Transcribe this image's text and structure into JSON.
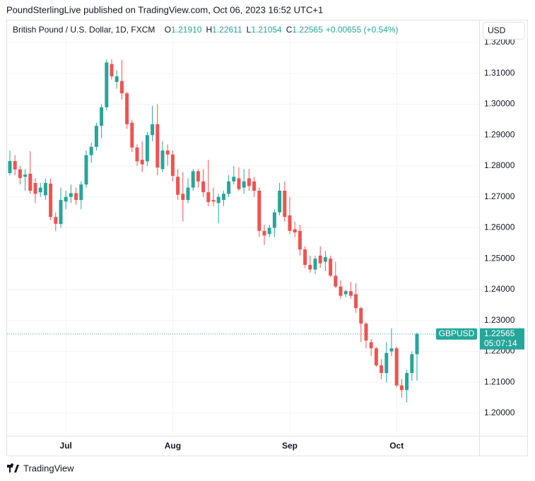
{
  "header": {
    "publisher": "PoundSterlingLive published on TradingView.com, Oct 06, 2023 16:52 UTC+1",
    "symbol": "British Pound / U.S. Dollar, 1D, FXCM",
    "ohlc": [
      {
        "label": "O",
        "value": "1.21910"
      },
      {
        "label": "H",
        "value": "1.22611"
      },
      {
        "label": "L",
        "value": "1.21054"
      },
      {
        "label": "C",
        "value": "1.22565"
      }
    ],
    "change": "+0.00655 (+0.54%)",
    "currency": "USD"
  },
  "footer": {
    "brand": "TradingView"
  },
  "chart_data": {
    "type": "candlestick",
    "up_color": "#26a69a",
    "down_color": "#ef5350",
    "grid": true,
    "categories": [
      null,
      null,
      null,
      null,
      null,
      null,
      null,
      null,
      null,
      null,
      null,
      "Jul",
      null,
      null,
      null,
      null,
      null,
      null,
      null,
      null,
      null,
      null,
      null,
      null,
      null,
      null,
      null,
      null,
      null,
      null,
      null,
      null,
      "Aug",
      null,
      null,
      null,
      null,
      null,
      null,
      null,
      null,
      null,
      null,
      null,
      null,
      null,
      null,
      null,
      null,
      null,
      null,
      null,
      null,
      null,
      null,
      "Sep",
      null,
      null,
      null,
      null,
      null,
      null,
      null,
      null,
      null,
      null,
      null,
      null,
      null,
      null,
      null,
      null,
      null,
      null,
      null,
      null,
      "Oct",
      null,
      null,
      null,
      null
    ],
    "open": [
      1.2777,
      1.2816,
      1.2789,
      1.2765,
      1.2775,
      1.2745,
      1.2715,
      1.2705,
      1.2743,
      1.2635,
      1.2612,
      1.2685,
      1.27,
      1.2712,
      1.269,
      1.274,
      1.2835,
      1.2862,
      1.293,
      1.299,
      1.313,
      1.3072,
      1.3075,
      1.3035,
      1.294,
      1.286,
      1.282,
      1.2815,
      1.29,
      1.2935,
      1.279,
      1.285,
      1.2837,
      1.2765,
      1.271,
      1.269,
      1.273,
      1.2783,
      1.275,
      1.2715,
      1.269,
      1.268,
      1.269,
      1.271,
      1.275,
      1.276,
      1.273,
      1.276,
      1.275,
      1.272,
      1.259,
      1.258,
      1.26,
      1.265,
      1.272,
      1.264,
      1.2595,
      1.259,
      1.253,
      1.248,
      1.2465,
      1.251,
      1.249,
      1.25,
      1.2445,
      1.241,
      1.2385,
      1.2395,
      1.2385,
      1.234,
      1.229,
      1.223,
      1.221,
      1.2155,
      1.213,
      1.22,
      1.221,
      1.209,
      1.2075,
      1.213,
      1.2191
    ],
    "high": [
      1.285,
      1.2835,
      1.28,
      1.279,
      1.2848,
      1.276,
      1.2745,
      1.276,
      1.276,
      1.265,
      1.273,
      1.272,
      1.274,
      1.273,
      1.275,
      1.285,
      1.2875,
      1.294,
      1.3,
      1.3145,
      1.3145,
      1.311,
      1.3143,
      1.304,
      1.295,
      1.287,
      1.288,
      1.291,
      1.2995,
      1.3,
      1.288,
      1.287,
      1.285,
      1.279,
      1.278,
      1.276,
      1.279,
      1.279,
      1.279,
      1.282,
      1.273,
      1.271,
      1.272,
      1.277,
      1.28,
      1.2795,
      1.279,
      1.279,
      1.2765,
      1.273,
      1.261,
      1.261,
      1.266,
      1.2745,
      1.275,
      1.27,
      1.262,
      1.261,
      1.254,
      1.251,
      1.251,
      1.254,
      1.2525,
      1.251,
      1.249,
      1.243,
      1.24,
      1.2425,
      1.242,
      1.2345,
      1.2295,
      1.224,
      1.2215,
      1.2175,
      1.223,
      1.2275,
      1.2215,
      1.211,
      1.214,
      1.22,
      1.22611
    ],
    "low": [
      1.277,
      1.277,
      1.274,
      1.272,
      1.271,
      1.268,
      1.27,
      1.269,
      1.2625,
      1.259,
      1.26,
      1.266,
      1.268,
      1.2675,
      1.266,
      1.273,
      1.281,
      1.285,
      1.289,
      1.298,
      1.308,
      1.305,
      1.3015,
      1.292,
      1.2845,
      1.28,
      1.278,
      1.28,
      1.288,
      1.277,
      1.278,
      1.28,
      1.275,
      1.269,
      1.262,
      1.268,
      1.272,
      1.273,
      1.27,
      1.267,
      1.267,
      1.2615,
      1.267,
      1.27,
      1.274,
      1.272,
      1.271,
      1.272,
      1.27,
      1.257,
      1.2545,
      1.257,
      1.257,
      1.264,
      1.262,
      1.258,
      1.257,
      1.251,
      1.247,
      1.2455,
      1.245,
      1.247,
      1.246,
      1.244,
      1.2405,
      1.237,
      1.2375,
      1.237,
      1.2325,
      1.223,
      1.221,
      1.2185,
      1.215,
      1.211,
      1.21,
      1.2185,
      1.2085,
      1.205,
      1.2035,
      1.2105,
      1.21054
    ],
    "close": [
      1.2816,
      1.2789,
      1.2761,
      1.2772,
      1.272,
      1.271,
      1.273,
      1.2745,
      1.2635,
      1.2613,
      1.269,
      1.27,
      1.2712,
      1.269,
      1.274,
      1.2835,
      1.2862,
      1.293,
      1.299,
      1.3135,
      1.309,
      1.309,
      1.3035,
      1.2935,
      1.286,
      1.2815,
      1.2805,
      1.29,
      1.2935,
      1.2795,
      1.285,
      1.2837,
      1.2768,
      1.2707,
      1.269,
      1.273,
      1.2783,
      1.275,
      1.2715,
      1.2683,
      1.2685,
      1.27,
      1.271,
      1.275,
      1.2765,
      1.2725,
      1.275,
      1.2735,
      1.272,
      1.259,
      1.2575,
      1.26,
      1.265,
      1.272,
      1.2635,
      1.259,
      1.2585,
      1.253,
      1.248,
      1.2465,
      1.25,
      1.2485,
      1.2505,
      1.2445,
      1.241,
      1.238,
      1.2395,
      1.238,
      1.234,
      1.229,
      1.2235,
      1.221,
      1.2155,
      1.213,
      1.2195,
      1.221,
      1.209,
      1.2075,
      1.213,
      1.2191,
      1.22565
    ],
    "ylim": [
      1.1927,
      1.3273
    ],
    "yticks": [
      {
        "value": 1.2,
        "label": "1.20000"
      },
      {
        "value": 1.21,
        "label": "1.21000"
      },
      {
        "value": 1.22,
        "label": "1.22000"
      },
      {
        "value": 1.23,
        "label": "1.23000"
      },
      {
        "value": 1.24,
        "label": "1.24000"
      },
      {
        "value": 1.25,
        "label": "1.25000"
      },
      {
        "value": 1.26,
        "label": "1.26000"
      },
      {
        "value": 1.27,
        "label": "1.27000"
      },
      {
        "value": 1.28,
        "label": "1.28000"
      },
      {
        "value": 1.29,
        "label": "1.29000"
      },
      {
        "value": 1.3,
        "label": "1.30000"
      },
      {
        "value": 1.31,
        "label": "1.31000"
      },
      {
        "value": 1.32,
        "label": "1.32000"
      }
    ],
    "last_price": {
      "value": 1.22565,
      "label": "1.22565",
      "name": "GBPUSD",
      "countdown": "05:07:14"
    }
  }
}
